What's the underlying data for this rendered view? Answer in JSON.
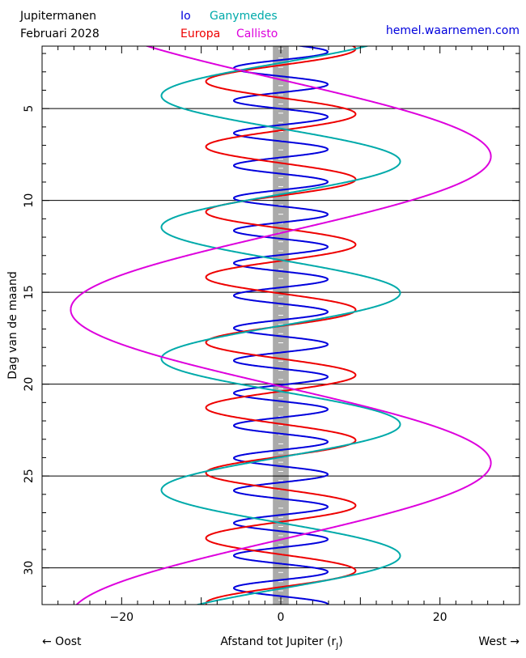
{
  "header": {
    "title": "Jupitermanen",
    "subtitle": "Februari  2028",
    "website": "hemel.waarnemen.com"
  },
  "legend": {
    "items": [
      {
        "name": "Io",
        "color": "#0000dd"
      },
      {
        "name": "Ganymedes",
        "color": "#00aaaa"
      },
      {
        "name": "Europa",
        "color": "#ee0000"
      },
      {
        "name": "Callisto",
        "color": "#dd00dd"
      }
    ]
  },
  "chart_data": {
    "type": "line",
    "title": "Jupitermanen",
    "xlabel": "Afstand tot Jupiter (r",
    "xlabel_sub": "J",
    "xlabel_end": ")",
    "ylabel": "Dag van de maand",
    "direction_left": "← Oost",
    "direction_right": "West →",
    "xlim": [
      -30,
      30
    ],
    "ylim": [
      1.6,
      32
    ],
    "y_inverted": true,
    "xticks": [
      -20,
      0,
      20
    ],
    "yticks": [
      5,
      10,
      15,
      20,
      25,
      30
    ],
    "grid": "horizontal",
    "jupiter_band": {
      "width_rj": 2.0,
      "color": "#aaaaaa"
    },
    "series": [
      {
        "name": "Io",
        "color": "#0000dd",
        "amplitude": 5.9,
        "period_days": 1.769,
        "x": [
          5.9,
          -5.9,
          5.9,
          -5.9
        ],
        "y": [
          5.45,
          6.34,
          7.22,
          8.11
        ]
      },
      {
        "name": "Europa",
        "color": "#ee0000",
        "amplitude": 9.4,
        "period_days": 3.551,
        "x": [
          9.4,
          -9.4,
          9.4,
          -9.4
        ],
        "y": [
          5.3,
          7.08,
          8.85,
          10.63
        ]
      },
      {
        "name": "Ganymedes",
        "color": "#00aaaa",
        "amplitude": 15.0,
        "period_days": 7.155,
        "x": [
          -15.0,
          15.0,
          -15.0,
          15.0
        ],
        "y": [
          4.3,
          7.88,
          11.45,
          15.03
        ]
      },
      {
        "name": "Callisto",
        "color": "#dd00dd",
        "amplitude": 26.4,
        "period_days": 16.689,
        "x": [
          26.4,
          -26.4,
          26.4
        ],
        "y": [
          7.6,
          15.94,
          24.29
        ]
      }
    ]
  }
}
